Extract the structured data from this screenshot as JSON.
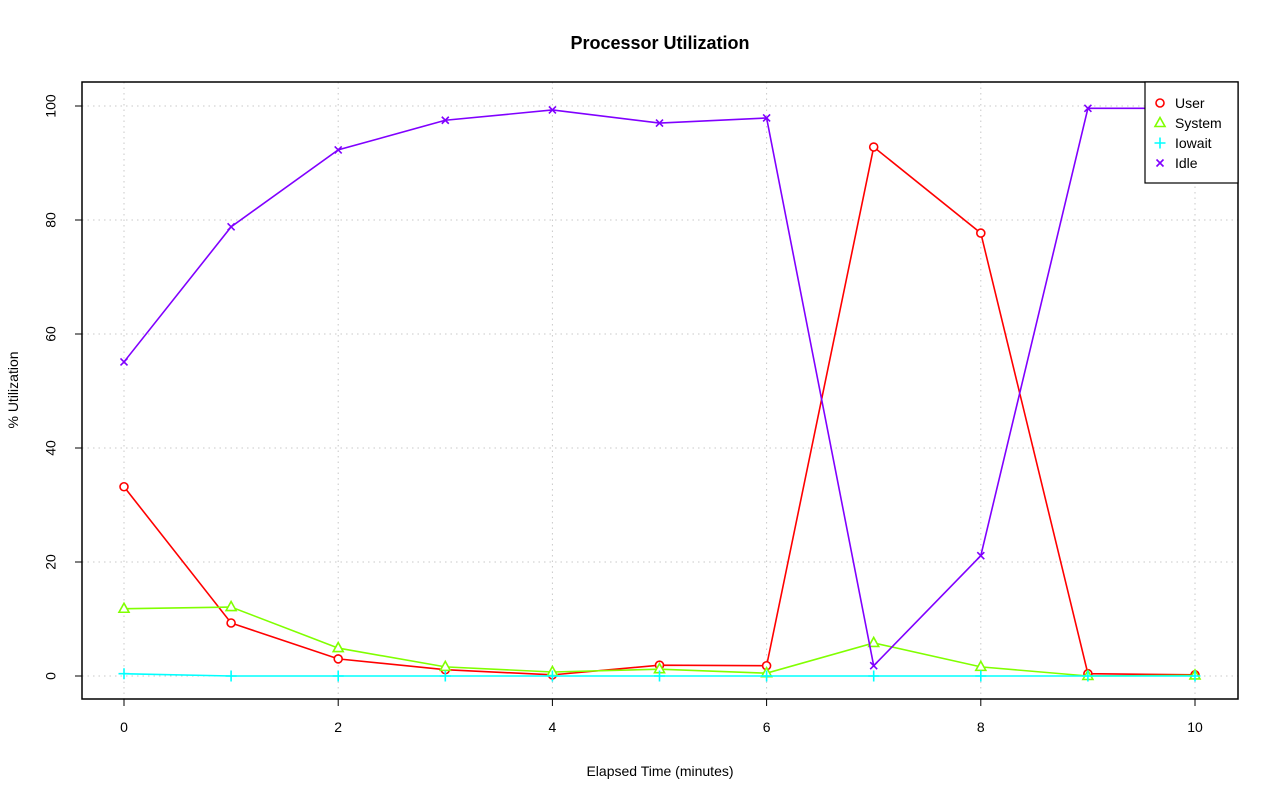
{
  "chart_data": {
    "type": "line",
    "title": "Processor Utilization",
    "xlabel": "Elapsed Time (minutes)",
    "ylabel": "% Utilization",
    "xlim": [
      0,
      10
    ],
    "ylim": [
      0,
      100
    ],
    "xticks": [
      0,
      2,
      4,
      6,
      8,
      10
    ],
    "yticks": [
      0,
      20,
      40,
      60,
      80,
      100
    ],
    "grid": true,
    "legend_position": "top-right",
    "x": [
      0,
      1,
      2,
      3,
      4,
      5,
      6,
      7,
      8,
      9,
      10
    ],
    "series": [
      {
        "name": "User",
        "color": "#ff0000",
        "marker": "circle",
        "values": [
          33.2,
          9.3,
          3.0,
          1.1,
          0.2,
          1.9,
          1.8,
          92.8,
          77.7,
          0.4,
          0.2
        ]
      },
      {
        "name": "System",
        "color": "#80ff00",
        "marker": "triangle",
        "values": [
          11.8,
          12.1,
          4.9,
          1.6,
          0.7,
          1.2,
          0.5,
          5.8,
          1.6,
          0.0,
          0.1
        ]
      },
      {
        "name": "Iowait",
        "color": "#00ffff",
        "marker": "plus",
        "values": [
          0.4,
          0.0,
          0.0,
          0.0,
          0.0,
          0.0,
          0.0,
          0.0,
          0.0,
          0.0,
          0.0
        ]
      },
      {
        "name": "Idle",
        "color": "#8000ff",
        "marker": "cross",
        "values": [
          55.1,
          78.8,
          92.3,
          97.5,
          99.3,
          97.0,
          97.9,
          1.8,
          21.1,
          99.6,
          99.6
        ]
      }
    ]
  }
}
